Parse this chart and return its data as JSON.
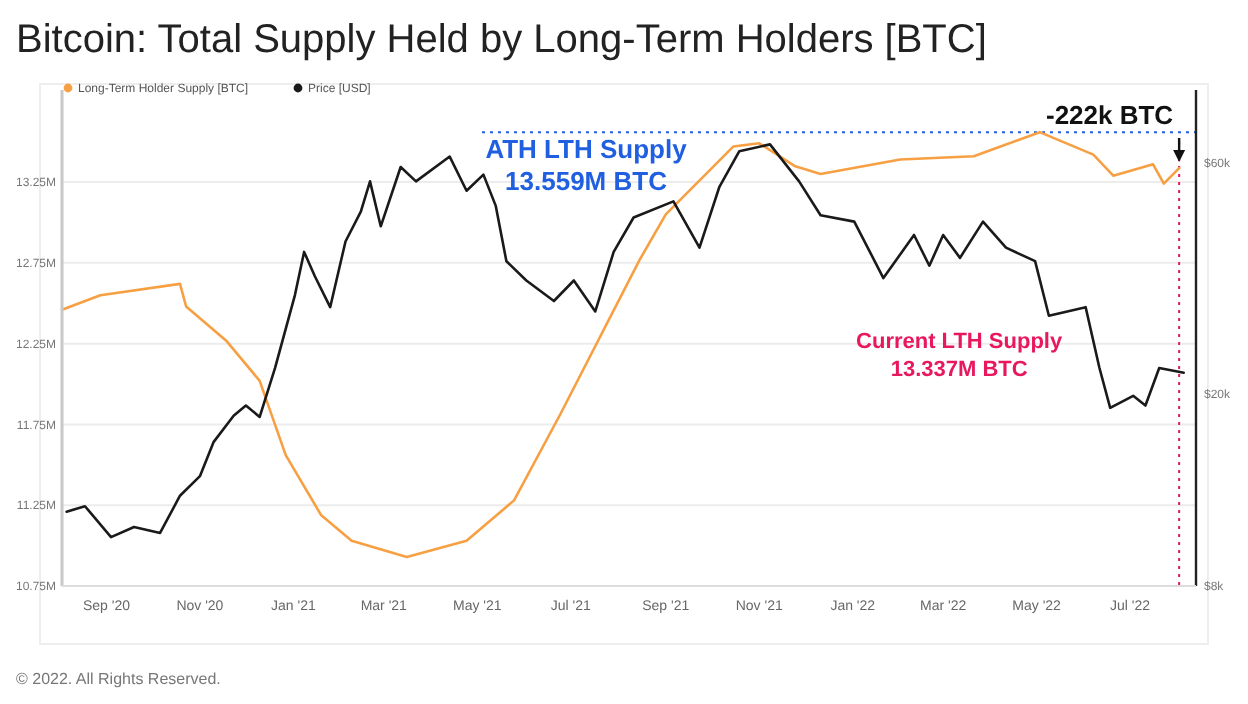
{
  "chart_data": {
    "type": "line",
    "title": "Bitcoin: Total Supply Held by Long-Term Holders [BTC]",
    "x": [
      "2020-08-03",
      "2020-08-28",
      "2020-10-19",
      "2020-10-23",
      "2020-11-18",
      "2020-12-10",
      "2020-12-27",
      "2021-01-19",
      "2021-02-08",
      "2021-03-16",
      "2021-04-24",
      "2021-05-25",
      "2021-06-24",
      "2021-08-15",
      "2021-09-01",
      "2021-10-15",
      "2021-11-01",
      "2021-11-24",
      "2021-12-11",
      "2022-02-01",
      "2022-03-21",
      "2022-05-03",
      "2022-06-07",
      "2022-06-20",
      "2022-07-16",
      "2022-07-23",
      "2022-08-02"
    ],
    "series": [
      {
        "name": "Long-Term Holder Supply [BTC]",
        "color": "#f7a043",
        "values": [
          12.46,
          12.55,
          12.62,
          12.48,
          12.27,
          12.02,
          11.56,
          11.19,
          11.03,
          10.93,
          11.03,
          11.28,
          11.81,
          12.77,
          13.05,
          13.47,
          13.49,
          13.35,
          13.3,
          13.39,
          13.41,
          13.559,
          13.42,
          13.29,
          13.36,
          13.24,
          13.337
        ]
      },
      {
        "name": "Price [USD]",
        "color": "#1a1a1a",
        "axis": "y2",
        "x": [
          "2020-08-06",
          "2020-08-18",
          "2020-09-04",
          "2020-09-19",
          "2020-10-06",
          "2020-10-19",
          "2020-11-01",
          "2020-11-10",
          "2020-11-23",
          "2020-12-01",
          "2020-12-10",
          "2020-12-20",
          "2021-01-02",
          "2021-01-08",
          "2021-01-15",
          "2021-01-25",
          "2021-02-04",
          "2021-02-14",
          "2021-02-20",
          "2021-02-27",
          "2021-03-12",
          "2021-03-22",
          "2021-04-13",
          "2021-04-24",
          "2021-05-05",
          "2021-05-13",
          "2021-05-20",
          "2021-06-02",
          "2021-06-20",
          "2021-07-03",
          "2021-07-17",
          "2021-07-29",
          "2021-08-11",
          "2021-09-06",
          "2021-09-23",
          "2021-10-06",
          "2021-10-19",
          "2021-11-08",
          "2021-11-27",
          "2021-12-11",
          "2022-01-02",
          "2022-01-21",
          "2022-02-10",
          "2022-02-20",
          "2022-03-01",
          "2022-03-12",
          "2022-03-27",
          "2022-04-11",
          "2022-04-30",
          "2022-05-09",
          "2022-06-02",
          "2022-06-11",
          "2022-06-18",
          "2022-07-03",
          "2022-07-11",
          "2022-07-20",
          "2022-08-05"
        ],
        "values": [
          11400,
          11700,
          10100,
          10600,
          10300,
          12300,
          13500,
          15900,
          18000,
          18900,
          17900,
          22600,
          32000,
          39300,
          35000,
          30200,
          41300,
          47600,
          55000,
          44400,
          58900,
          55000,
          61900,
          52600,
          56800,
          49000,
          37600,
          34300,
          31100,
          34300,
          29600,
          39300,
          46300,
          50000,
          40100,
          53600,
          63500,
          65600,
          55000,
          46800,
          45400,
          34700,
          42600,
          36800,
          42600,
          38200,
          45400,
          40100,
          37600,
          29000,
          30200,
          22600,
          18700,
          19800,
          18900,
          22600,
          22100
        ]
      }
    ],
    "xlim": [
      "2020-08-03",
      "2022-08-13"
    ],
    "xticks": [
      {
        "value": "2020-09-01",
        "label": "Sep '20"
      },
      {
        "value": "2020-11-01",
        "label": "Nov '20"
      },
      {
        "value": "2021-01-01",
        "label": "Jan '21"
      },
      {
        "value": "2021-03-01",
        "label": "Mar '21"
      },
      {
        "value": "2021-05-01",
        "label": "May '21"
      },
      {
        "value": "2021-07-01",
        "label": "Jul '21"
      },
      {
        "value": "2021-09-01",
        "label": "Sep '21"
      },
      {
        "value": "2021-11-01",
        "label": "Nov '21"
      },
      {
        "value": "2022-01-01",
        "label": "Jan '22"
      },
      {
        "value": "2022-03-01",
        "label": "Mar '22"
      },
      {
        "value": "2022-05-01",
        "label": "May '22"
      },
      {
        "value": "2022-07-01",
        "label": "Jul '22"
      }
    ],
    "ylim": [
      10.75,
      13.82
    ],
    "yticks": [
      {
        "value": 10.75,
        "label": "10.75M"
      },
      {
        "value": 11.25,
        "label": "11.25M"
      },
      {
        "value": 11.75,
        "label": "11.75M"
      },
      {
        "value": 12.25,
        "label": "12.25M"
      },
      {
        "value": 12.75,
        "label": "12.75M"
      },
      {
        "value": 13.25,
        "label": "13.25M"
      }
    ],
    "y2lim": [
      8000,
      85000
    ],
    "y2ticks": [
      {
        "value": 8000,
        "label": "$8k"
      },
      {
        "value": 20000,
        "label": "$20k"
      },
      {
        "value": 60000,
        "label": "$60k"
      }
    ],
    "log": "y2",
    "grid": "y",
    "legend": "top left",
    "ref_lines": [
      {
        "axis": "y",
        "value": 13.559,
        "label": "ATH LTH Supply\n13.559M BTC",
        "color": "#1f5fe0",
        "line_style": "dotted"
      },
      {
        "axis": "x",
        "value": "2022-08-02",
        "label": "Current LTH Supply\n13.337M BTC",
        "color": "#e8185f",
        "line_style": "dotted"
      }
    ],
    "annotations": [
      {
        "text": "-222k BTC",
        "x": "2022-08-02",
        "y": 13.337
      },
      "© 2022. All Rights Reserved."
    ]
  }
}
